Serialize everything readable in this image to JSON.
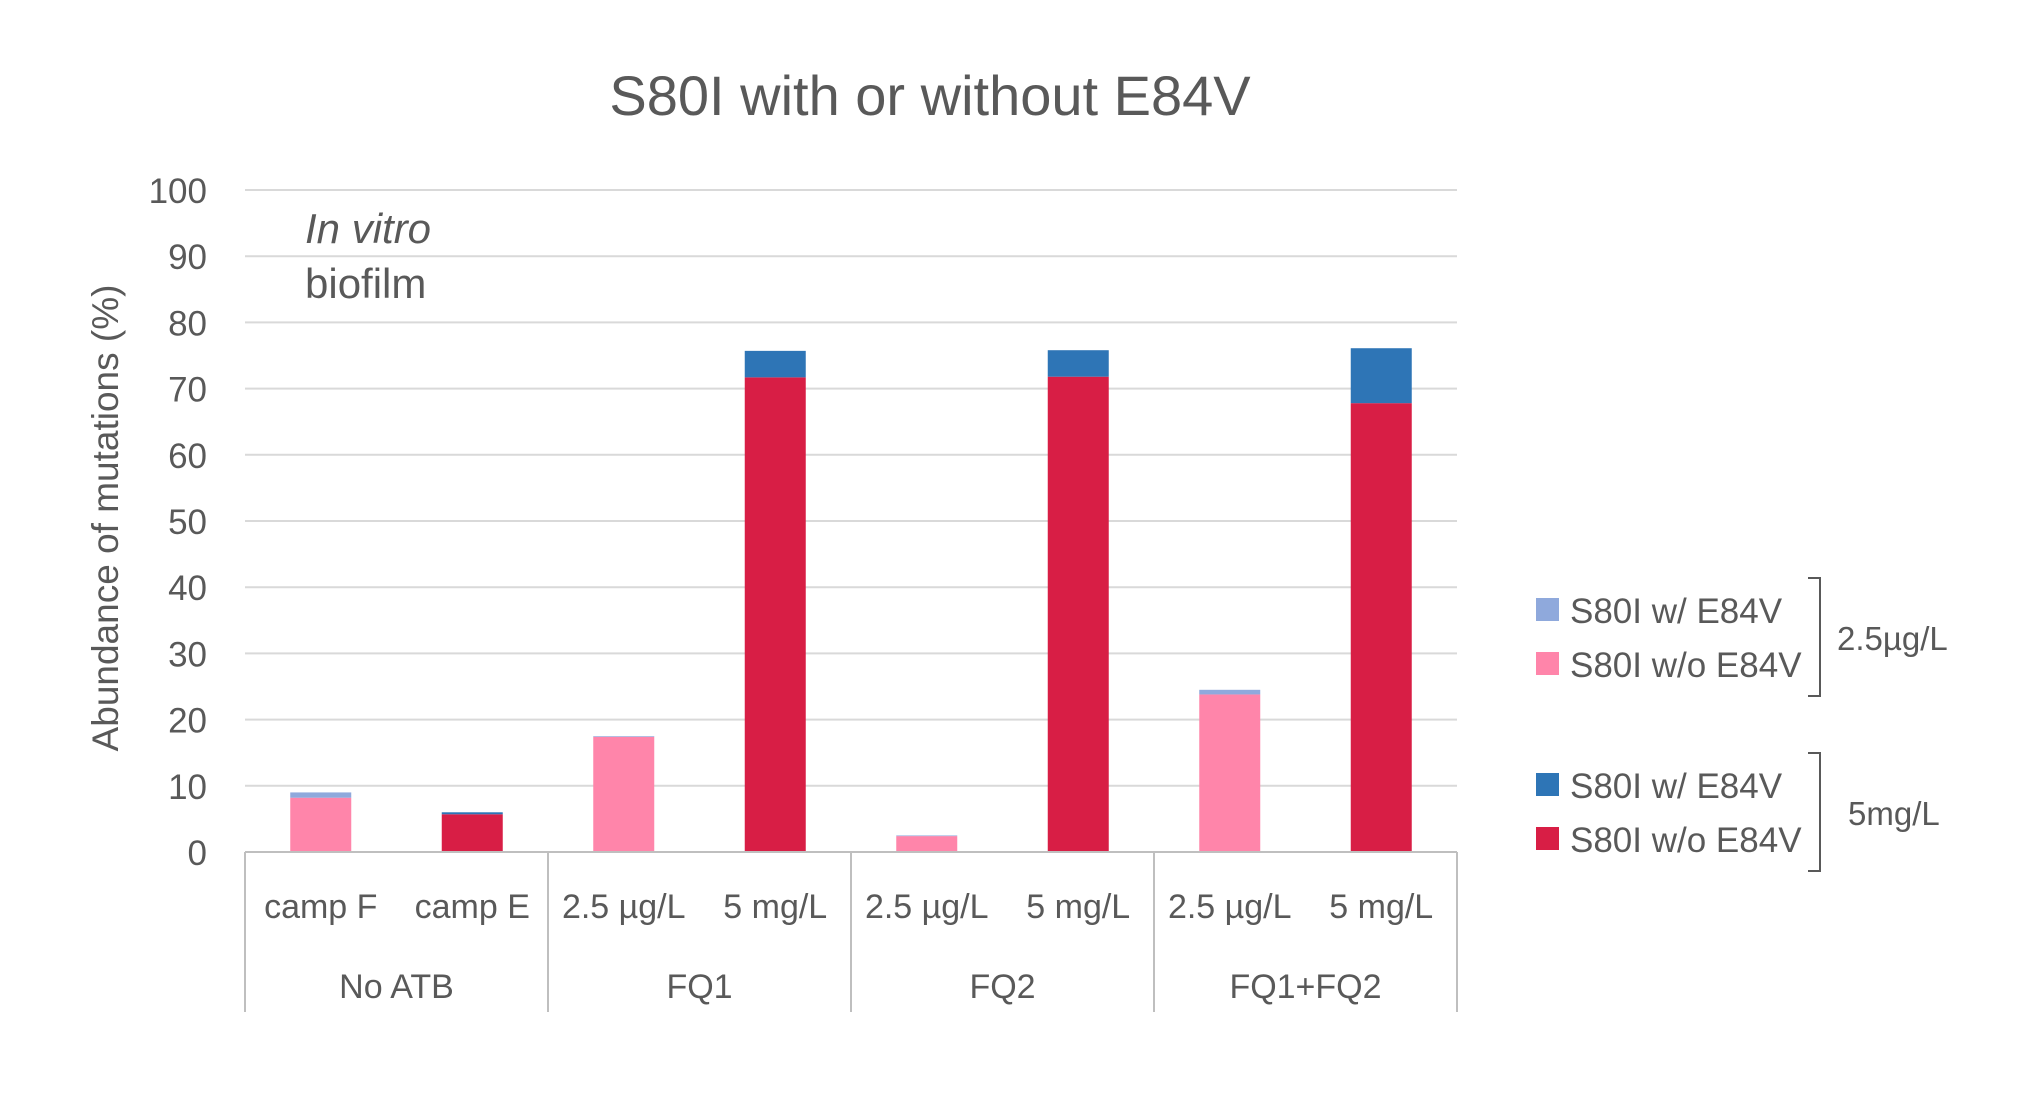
{
  "chart_data": {
    "type": "bar",
    "stacked": true,
    "title": "S80I with or without E84V",
    "ylabel": "Abundance of mutations (%)",
    "ylim": [
      0,
      100
    ],
    "yticks": [
      0,
      10,
      20,
      30,
      40,
      50,
      60,
      70,
      80,
      90,
      100
    ],
    "grid": true,
    "annotation": {
      "line1": "In vitro",
      "line2": "biofilm"
    },
    "categories": [
      "camp F",
      "camp E",
      "2.5 µg/L",
      "5 mg/L",
      "2.5 µg/L",
      "5 mg/L",
      "2.5 µg/L",
      "5 mg/L"
    ],
    "groups": [
      {
        "label": "No ATB",
        "span": 2
      },
      {
        "label": "FQ1",
        "span": 2
      },
      {
        "label": "FQ2",
        "span": 2
      },
      {
        "label": "FQ1+FQ2",
        "span": 2
      }
    ],
    "series": [
      {
        "name": "S80I w/o E84V",
        "bracket": "2.5µg/L",
        "color": "#FF85AA",
        "values": [
          8.2,
          0,
          17.4,
          0,
          2.4,
          0,
          23.8,
          0
        ]
      },
      {
        "name": "S80I w/ E84V",
        "bracket": "2.5µg/L",
        "color": "#8FA9DC",
        "values": [
          0.8,
          0,
          0.1,
          0,
          0.1,
          0,
          0.7,
          0
        ]
      },
      {
        "name": "S80I w/o E84V",
        "bracket": "5mg/L",
        "color": "#D81E45",
        "values": [
          0,
          5.7,
          0,
          71.7,
          0,
          71.8,
          0,
          67.8
        ]
      },
      {
        "name": "S80I w/ E84V",
        "bracket": "5mg/L",
        "color": "#2E75B6",
        "values": [
          0,
          0.3,
          0,
          4.0,
          0,
          4.0,
          0,
          8.3
        ]
      }
    ],
    "legend": {
      "placement": "right",
      "groups": [
        {
          "label": "2.5µg/L",
          "entries": [
            {
              "label": "S80I w/ E84V",
              "color": "#8FA9DC"
            },
            {
              "label": "S80I w/o E84V",
              "color": "#FF85AA"
            }
          ]
        },
        {
          "label": "5mg/L",
          "entries": [
            {
              "label": "S80I w/ E84V",
              "color": "#2E75B6"
            },
            {
              "label": "S80I w/o E84V",
              "color": "#D81E45"
            }
          ]
        }
      ]
    }
  }
}
